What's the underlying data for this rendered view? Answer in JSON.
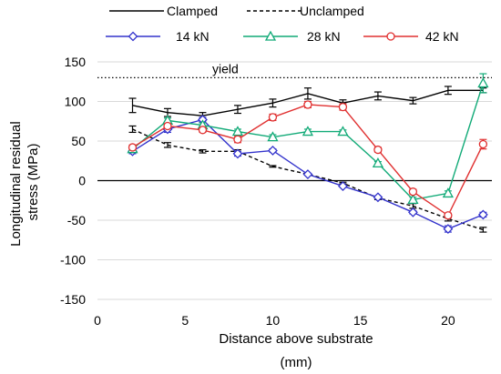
{
  "chart_data": {
    "type": "line",
    "title": "",
    "xlabel": "Distance above substrate (mm)",
    "xlabel_lines": [
      "Distance above substrate",
      "(mm)"
    ],
    "ylabel": "Longitudinal residual stress (MPa)",
    "ylabel_lines": [
      "Longitudinal residual",
      "stress (MPa)"
    ],
    "xlim": [
      0,
      22.5
    ],
    "ylim": [
      -150,
      150
    ],
    "xticks": [
      0,
      5,
      10,
      15,
      20
    ],
    "yticks": [
      -150,
      -100,
      -50,
      0,
      50,
      100,
      150
    ],
    "grid": "horizontal",
    "legend_position": "top",
    "annotations": [
      {
        "text": "yield",
        "y": 130,
        "style": "dotted reference line"
      }
    ],
    "x": [
      2,
      4,
      6,
      8,
      10,
      12,
      14,
      16,
      18,
      20,
      22
    ],
    "series": [
      {
        "name": "Clamped",
        "color": "#000000",
        "dash": "solid",
        "marker": "none",
        "values": [
          95,
          86,
          82,
          90,
          98,
          110,
          98,
          107,
          101,
          114,
          114
        ],
        "errors": [
          9,
          5,
          4,
          5,
          5,
          7,
          4,
          5,
          4,
          5,
          3
        ]
      },
      {
        "name": "Unclamped",
        "color": "#000000",
        "dash": "dashed",
        "marker": "none",
        "values": [
          65,
          45,
          37,
          37,
          18,
          8,
          -3,
          -22,
          -32,
          -48,
          -62
        ],
        "errors": [
          4,
          3,
          2,
          2,
          1,
          1,
          1,
          2,
          3,
          3,
          3
        ]
      },
      {
        "name": "14 kN",
        "color": "#3333cc",
        "dash": "solid",
        "marker": "diamond",
        "values": [
          37,
          65,
          77,
          34,
          38,
          8,
          -7,
          -21,
          -40,
          -61,
          -43
        ],
        "errors": [
          3,
          4,
          3,
          3,
          2,
          1,
          1,
          1,
          2,
          4,
          3
        ]
      },
      {
        "name": "28 kN",
        "color": "#11aa77",
        "dash": "solid",
        "marker": "triangle",
        "values": [
          40,
          76,
          70,
          62,
          55,
          62,
          62,
          22,
          -24,
          -16,
          123
        ],
        "errors": [
          3,
          3,
          3,
          3,
          3,
          3,
          2,
          2,
          3,
          3,
          12
        ]
      },
      {
        "name": "42 kN",
        "color": "#e03030",
        "dash": "solid",
        "marker": "circle",
        "values": [
          42,
          69,
          64,
          52,
          80,
          96,
          93,
          39,
          -14,
          -44,
          46
        ],
        "errors": [
          3,
          3,
          3,
          4,
          4,
          4,
          4,
          3,
          3,
          3,
          6
        ]
      }
    ]
  }
}
